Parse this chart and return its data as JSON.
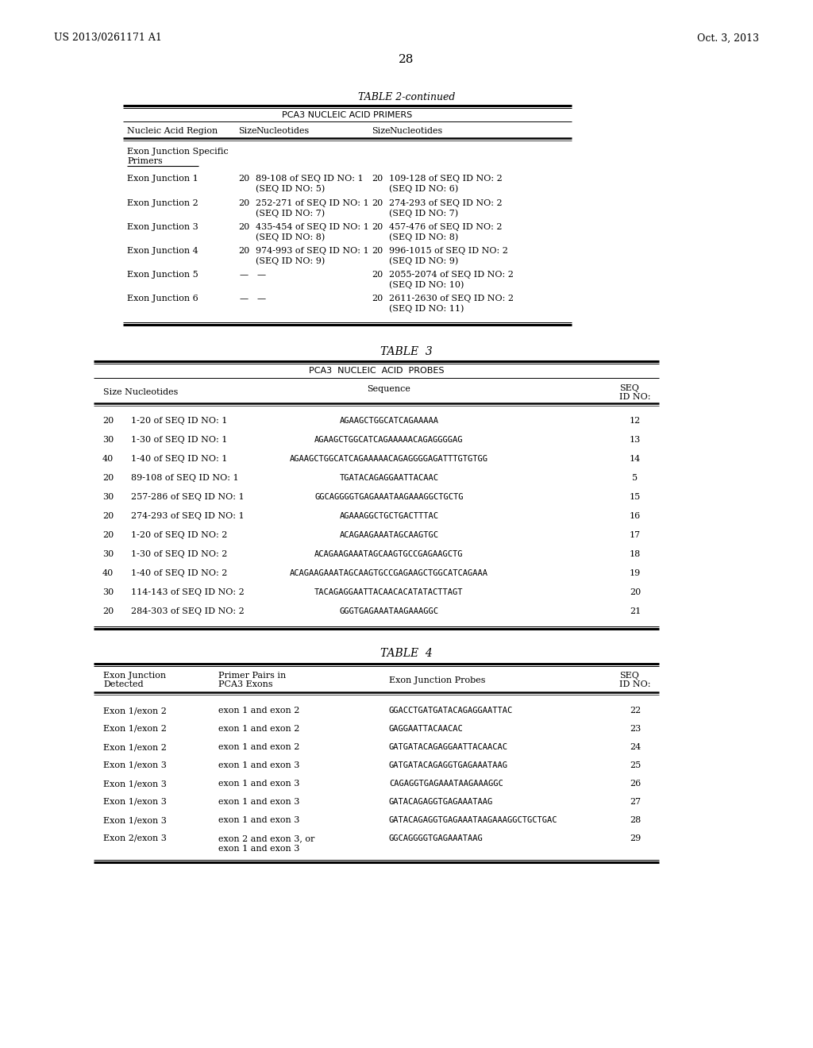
{
  "page_left": "US 2013/0261171 A1",
  "page_right": "Oct. 3, 2013",
  "page_number": "28",
  "bg": "#ffffff",
  "fg": "#000000",
  "t2_title": "TABLE 2-continued",
  "t2_subtitle": "PCA3 NUCLEIC ACID PRIMERS",
  "t2_col_headers": [
    "Nucleic Acid Region",
    "Size",
    "Nucleotides",
    "Size",
    "Nucleotides"
  ],
  "t2_section": [
    "Exon Junction Specific",
    "Primers"
  ],
  "t2_rows": [
    [
      "Exon Junction 1",
      "20",
      "89-108 of SEQ ID NO: 1",
      "(SEQ ID NO: 5)",
      "20",
      "109-128 of SEQ ID NO: 2",
      "(SEQ ID NO: 6)"
    ],
    [
      "Exon Junction 2",
      "20",
      "252-271 of SEQ ID NO: 1",
      "(SEQ ID NO: 7)",
      "20",
      "274-293 of SEQ ID NO: 2",
      "(SEQ ID NO: 7)"
    ],
    [
      "Exon Junction 3",
      "20",
      "435-454 of SEQ ID NO: 1",
      "(SEQ ID NO: 8)",
      "20",
      "457-476 of SEQ ID NO: 2",
      "(SEQ ID NO: 8)"
    ],
    [
      "Exon Junction 4",
      "20",
      "974-993 of SEQ ID NO: 1",
      "(SEQ ID NO: 9)",
      "20",
      "996-1015 of SEQ ID NO: 2",
      "(SEQ ID NO: 9)"
    ],
    [
      "Exon Junction 5",
      "—",
      "—",
      "",
      "20",
      "2055-2074 of SEQ ID NO: 2",
      "(SEQ ID NO: 10)"
    ],
    [
      "Exon Junction 6",
      "—",
      "—",
      "",
      "20",
      "2611-2630 of SEQ ID NO: 2",
      "(SEQ ID NO: 11)"
    ]
  ],
  "t3_title": "TABLE  3",
  "t3_subtitle": "PCA3  NUCLEIC  ACID  PROBES",
  "t3_rows": [
    [
      "20",
      "1-20 of SEQ ID NO: 1",
      "AGAAGCTGGCATCAGAAAAA",
      "12"
    ],
    [
      "30",
      "1-30 of SEQ ID NO: 1",
      "AGAAGCTGGCATCAGAAAAACAGAGGGGAG",
      "13"
    ],
    [
      "40",
      "1-40 of SEQ ID NO: 1",
      "AGAAGCTGGCATCAGAAAAACAGAGGGGAGATTTGTGTGG",
      "14"
    ],
    [
      "20",
      "89-108 of SEQ ID NO: 1",
      "TGATACAGAGGAATTACAAC",
      "5"
    ],
    [
      "30",
      "257-286 of SEQ ID NO: 1",
      "GGCAGGGGTGAGAAATAAGAAAGGCTGCTG",
      "15"
    ],
    [
      "20",
      "274-293 of SEQ ID NO: 1",
      "AGAAAGGCTGCTGACTTTAC",
      "16"
    ],
    [
      "20",
      "1-20 of SEQ ID NO: 2",
      "ACAGAAGAAATAGCAAGTGC",
      "17"
    ],
    [
      "30",
      "1-30 of SEQ ID NO: 2",
      "ACAGAAGAAATAGCAAGTGCCGAGAAGCTG",
      "18"
    ],
    [
      "40",
      "1-40 of SEQ ID NO: 2",
      "ACAGAAGAAATAGCAAGTGCCGAGAAGCTGGCATCAGAAA",
      "19"
    ],
    [
      "30",
      "114-143 of SEQ ID NO: 2",
      "TACAGAGGAATTACAACACATATACTTAGT",
      "20"
    ],
    [
      "20",
      "284-303 of SEQ ID NO: 2",
      "GGGTGAGAAATAAGAAAGGC",
      "21"
    ]
  ],
  "t4_title": "TABLE  4",
  "t4_rows": [
    [
      "Exon 1/exon 2",
      "exon 1 and exon 2",
      "GGACCTGATGATACAGAGGAATTAC",
      "22"
    ],
    [
      "Exon 1/exon 2",
      "exon 1 and exon 2",
      "GAGGAATTACAACAC",
      "23"
    ],
    [
      "Exon 1/exon 2",
      "exon 1 and exon 2",
      "GATGATACAGAGGAATTACAACAC",
      "24"
    ],
    [
      "Exon 1/exon 3",
      "exon 1 and exon 3",
      "GATGATACAGAGGTGAGAAATAAG",
      "25"
    ],
    [
      "Exon 1/exon 3",
      "exon 1 and exon 3",
      "CAGAGGTGAGAAATAAGAAAGGC",
      "26"
    ],
    [
      "Exon 1/exon 3",
      "exon 1 and exon 3",
      "GATACAGAGGTGAGAAATAAG",
      "27"
    ],
    [
      "Exon 1/exon 3",
      "exon 1 and exon 3",
      "GATACAGAGGTGAGAAATAAGAAAGGCTGCTGAC",
      "28"
    ],
    [
      "Exon 2/exon 3",
      "exon 2 and exon 3, or\nexon 1 and exon 3",
      "GGCAGGGGTGAGAAATAAG",
      "29"
    ]
  ]
}
